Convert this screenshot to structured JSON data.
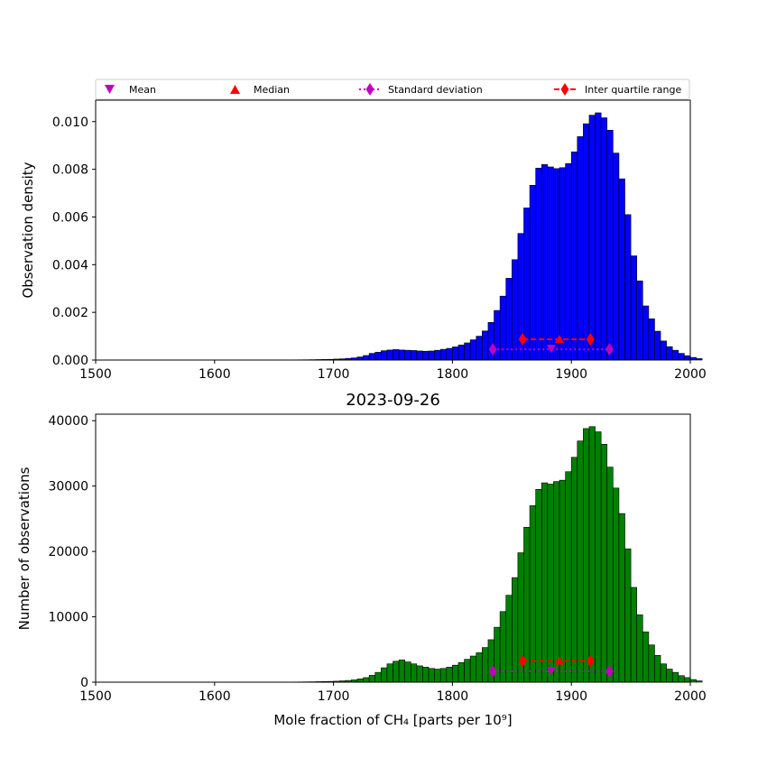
{
  "legend": {
    "entries": [
      {
        "label": "Mean",
        "marker": "triangle-down",
        "color": "#bf00bf"
      },
      {
        "label": "Median",
        "marker": "triangle-up",
        "color": "#ff0000"
      },
      {
        "label": "Standard deviation",
        "marker": "diamond-dotted-line",
        "color": "#bf00bf"
      },
      {
        "label": "Inter quartile range",
        "marker": "diamond-dashed-line",
        "color": "#ff0000"
      }
    ]
  },
  "chart_data": [
    {
      "type": "bar",
      "name": "density-histogram",
      "bar_color": "#0000ff",
      "xlim": [
        1500,
        2000
      ],
      "ylim": [
        0,
        0.0109
      ],
      "x_ticks": [
        1500,
        1600,
        1700,
        1800,
        1900,
        2000
      ],
      "y_ticks": [
        0,
        0.002,
        0.004,
        0.006,
        0.008,
        0.01
      ],
      "y_tick_labels": [
        "0.000",
        "0.002",
        "0.004",
        "0.006",
        "0.008",
        "0.010"
      ],
      "xlabel": "",
      "ylabel": "Observation density",
      "bin_start": 1655,
      "bin_width": 5,
      "values": [
        3e-06,
        5e-06,
        8e-06,
        1e-05,
        1.2e-05,
        1.5e-05,
        2e-05,
        2.5e-05,
        3e-05,
        4e-05,
        5e-05,
        7e-05,
        9e-05,
        0.00013,
        0.00019,
        0.00028,
        0.00033,
        0.00039,
        0.00042,
        0.00044,
        0.00042,
        0.00041,
        0.0004,
        0.00038,
        0.00037,
        0.00038,
        0.00041,
        0.00045,
        0.00049,
        0.00055,
        0.00063,
        0.00072,
        0.00085,
        0.001,
        0.00122,
        0.00158,
        0.00208,
        0.00268,
        0.00343,
        0.00421,
        0.00531,
        0.00638,
        0.00733,
        0.00805,
        0.0082,
        0.0081,
        0.00803,
        0.00807,
        0.00824,
        0.00873,
        0.00937,
        0.00991,
        0.01027,
        0.01037,
        0.01016,
        0.00964,
        0.00868,
        0.0076,
        0.0061,
        0.00437,
        0.00332,
        0.00227,
        0.00173,
        0.00121,
        0.0008,
        0.00056,
        0.00041,
        0.00028,
        0.00018,
        0.00011,
        6e-05
      ],
      "markers": {
        "mean": {
          "x": 1883,
          "y": 0.00045
        },
        "median": {
          "x": 1890,
          "y": 0.00087
        },
        "std": {
          "low": 1834,
          "high": 1932,
          "y": 0.00045
        },
        "iqr": {
          "low": 1859,
          "high": 1916,
          "y": 0.00087
        }
      }
    },
    {
      "type": "bar",
      "name": "count-histogram",
      "title": "2023-09-26",
      "bar_color": "#008000",
      "xlim": [
        1500,
        2000
      ],
      "ylim": [
        0,
        41000
      ],
      "x_ticks": [
        1500,
        1600,
        1700,
        1800,
        1900,
        2000
      ],
      "y_ticks": [
        0,
        10000,
        20000,
        30000,
        40000
      ],
      "y_tick_labels": [
        "0",
        "10000",
        "20000",
        "30000",
        "40000"
      ],
      "xlabel": "Mole fraction of CH₄ [parts per 10⁹]",
      "ylabel": "Number of observations",
      "bin_start": 1655,
      "bin_width": 5,
      "values": [
        10,
        20,
        30,
        40,
        50,
        60,
        80,
        100,
        120,
        150,
        200,
        260,
        350,
        500,
        700,
        1050,
        1500,
        2200,
        2800,
        3200,
        3400,
        3100,
        2800,
        2500,
        2300,
        2100,
        2000,
        2100,
        2300,
        2600,
        3000,
        3500,
        4000,
        4500,
        5300,
        6500,
        8400,
        10800,
        13300,
        16000,
        19800,
        23700,
        27000,
        29500,
        30500,
        30300,
        30700,
        30900,
        32200,
        34400,
        36900,
        38800,
        39100,
        38300,
        36400,
        32900,
        29700,
        25800,
        20400,
        14500,
        10300,
        7700,
        5700,
        4100,
        2800,
        2000,
        1500,
        1000,
        700,
        400,
        200
      ],
      "markers": {
        "mean": {
          "x": 1883,
          "y": 1650
        },
        "median": {
          "x": 1890,
          "y": 3250
        },
        "std": {
          "low": 1834,
          "high": 1932,
          "y": 1650
        },
        "iqr": {
          "low": 1859,
          "high": 1916,
          "y": 3250
        }
      }
    }
  ]
}
